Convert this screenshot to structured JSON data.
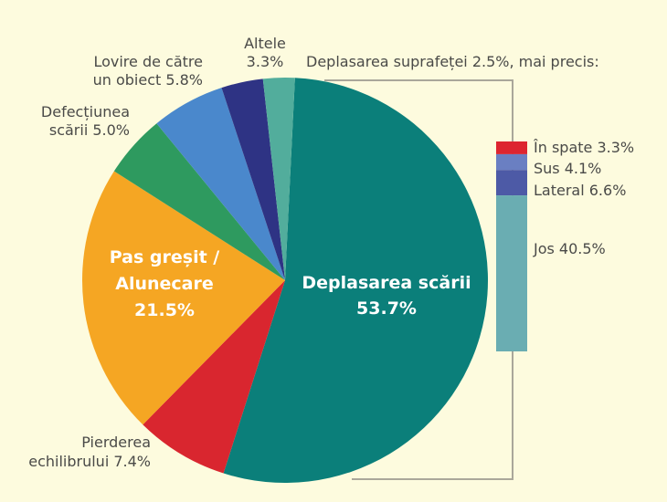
{
  "chart_data": {
    "type": "pie",
    "title": "",
    "slices": [
      {
        "id": "deplasarea-scarii",
        "label_lines": [
          "Deplasarea scării",
          "53.7%"
        ],
        "value": 53.7,
        "color": "#0b7f7a",
        "label_style": "inside"
      },
      {
        "id": "pierderea-echilibrului",
        "label_lines": [
          "Pierderea",
          "echilibrului 7.4%"
        ],
        "value": 7.4,
        "color": "#d9262f",
        "label_style": "outside-left"
      },
      {
        "id": "pas-gresit",
        "label_lines": [
          "Pas greșit /",
          "Alunecare",
          "21.5%"
        ],
        "value": 21.5,
        "color": "#f5a623",
        "label_style": "inside"
      },
      {
        "id": "defectiunea-scarii",
        "label_lines": [
          "Defecțiunea",
          "scării 5.0%"
        ],
        "value": 5.0,
        "color": "#2e9a5f",
        "label_style": "outside-left"
      },
      {
        "id": "lovire-obiect",
        "label_lines": [
          "Lovire de către",
          "un obiect 5.8%"
        ],
        "value": 5.8,
        "color": "#4a88cc",
        "label_style": "outside-left"
      },
      {
        "id": "altele",
        "label_lines": [
          "Altele",
          "3.3%"
        ],
        "value": 3.3,
        "color": "#2e3384",
        "label_style": "outside-center"
      },
      {
        "id": "deplasarea-suprafetei",
        "label_lines": [
          "Deplasarea suprafeței 2.5%, mai precis:"
        ],
        "value": 2.5,
        "color": "#52ad9c",
        "label_style": "outside-right"
      }
    ],
    "breakdown": {
      "title": "Deplasarea suprafeței 2.5%, mai precis:",
      "type": "stacked-bar",
      "segments": [
        {
          "label": "În spate 3.3%",
          "value": 3.3,
          "color": "#dd2530"
        },
        {
          "label": "Sus 4.1%",
          "value": 4.1,
          "color": "#6a7fc2"
        },
        {
          "label": "Lateral 6.6%",
          "value": 6.6,
          "color": "#4d5aa6"
        },
        {
          "label": "Jos 40.5%",
          "value": 40.5,
          "color": "#6aadb2"
        }
      ]
    },
    "start_angle_deg": 2.8,
    "direction": "clockwise"
  }
}
